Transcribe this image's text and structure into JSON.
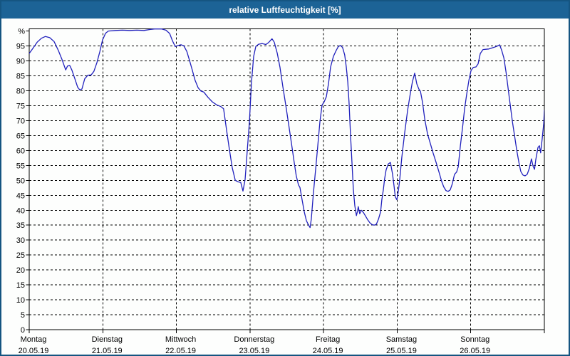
{
  "title": "relative Luftfeuchtigkeit [%]",
  "colors": {
    "titlebar_bg": "#1c6396",
    "titlebar_text": "#ffffff",
    "window_border": "#155581",
    "plot_line": "#2121bd",
    "grid": "#000000",
    "background": "#fdfefd"
  },
  "chart_data": {
    "type": "line",
    "title": "relative Luftfeuchtigkeit [%]",
    "ylabel": "%",
    "y_top_label": "%",
    "ylim": [
      0,
      100.7
    ],
    "y_ticks": [
      0,
      5,
      10,
      15,
      20,
      25,
      30,
      35,
      40,
      45,
      50,
      55,
      60,
      65,
      70,
      75,
      80,
      85,
      90,
      95
    ],
    "grid": "dashed",
    "legend_position": "none",
    "x_range_hours": [
      0,
      168
    ],
    "x_days": [
      {
        "name": "Montag",
        "date": "20.05.19"
      },
      {
        "name": "Dienstag",
        "date": "21.05.19"
      },
      {
        "name": "Mittwoch",
        "date": "22.05.19"
      },
      {
        "name": "Donnerstag",
        "date": "23.05.19"
      },
      {
        "name": "Freitag",
        "date": "24.05.19"
      },
      {
        "name": "Samstag",
        "date": "25.05.19"
      },
      {
        "name": "Sonntag",
        "date": "26.05.19"
      }
    ],
    "series": [
      {
        "name": "relative Luftfeuchtigkeit",
        "unit": "%",
        "points": [
          [
            0,
            92.5
          ],
          [
            1.4,
            94.5
          ],
          [
            2.6,
            96.3
          ],
          [
            4,
            97.6
          ],
          [
            5.3,
            98.2
          ],
          [
            6.7,
            97.8
          ],
          [
            8.1,
            96.5
          ],
          [
            9.5,
            93.5
          ],
          [
            10.7,
            90.5
          ],
          [
            11.9,
            87
          ],
          [
            12.5,
            88.3
          ],
          [
            13.2,
            88.5
          ],
          [
            13.9,
            87
          ],
          [
            14.9,
            84
          ],
          [
            15.8,
            81.2
          ],
          [
            16.5,
            80.3
          ],
          [
            17.2,
            80.6
          ],
          [
            18.1,
            84
          ],
          [
            19.1,
            85.2
          ],
          [
            20.2,
            85.3
          ],
          [
            21.1,
            86.5
          ],
          [
            22.1,
            89.5
          ],
          [
            23,
            93
          ],
          [
            23.9,
            97
          ],
          [
            24.9,
            99.3
          ],
          [
            25.8,
            100
          ],
          [
            28.1,
            100.2
          ],
          [
            30.4,
            100.3
          ],
          [
            32.8,
            100.2
          ],
          [
            35.1,
            100.3
          ],
          [
            37.4,
            100.2
          ],
          [
            39.3,
            100.5
          ],
          [
            40.9,
            100.7
          ],
          [
            43.2,
            100.7
          ],
          [
            44.6,
            100.3
          ],
          [
            45.8,
            99.2
          ],
          [
            46.7,
            96.8
          ],
          [
            47.6,
            94.8
          ],
          [
            48.6,
            95.2
          ],
          [
            49.5,
            95.4
          ],
          [
            50.4,
            95.1
          ],
          [
            51.4,
            93.2
          ],
          [
            52.3,
            90.1
          ],
          [
            53.2,
            86.9
          ],
          [
            54.1,
            83.5
          ],
          [
            55.1,
            81
          ],
          [
            56,
            79.9
          ],
          [
            56.9,
            79.6
          ],
          [
            58.3,
            77.8
          ],
          [
            59.7,
            76.3
          ],
          [
            61.1,
            75.3
          ],
          [
            62.5,
            74.7
          ],
          [
            63.4,
            74
          ],
          [
            64.4,
            66.5
          ],
          [
            65.3,
            60.3
          ],
          [
            66.2,
            54.3
          ],
          [
            67.2,
            50
          ],
          [
            68.1,
            49.5
          ],
          [
            69,
            49.3
          ],
          [
            69.7,
            46.4
          ],
          [
            70.4,
            50.3
          ],
          [
            71.1,
            59.9
          ],
          [
            71.8,
            69.4
          ],
          [
            72.5,
            83
          ],
          [
            73.2,
            91.5
          ],
          [
            73.9,
            94.8
          ],
          [
            74.8,
            95.6
          ],
          [
            76,
            95.8
          ],
          [
            77.2,
            95.5
          ],
          [
            78.1,
            96.2
          ],
          [
            79.2,
            97.4
          ],
          [
            79.9,
            96.3
          ],
          [
            80.9,
            92.5
          ],
          [
            81.8,
            87.8
          ],
          [
            82.7,
            81.5
          ],
          [
            83.7,
            75
          ],
          [
            84.6,
            68.8
          ],
          [
            85.5,
            62.5
          ],
          [
            86.4,
            56.2
          ],
          [
            87.1,
            51.5
          ],
          [
            87.8,
            48.5
          ],
          [
            88.3,
            47.6
          ],
          [
            89,
            43.5
          ],
          [
            89.7,
            39.5
          ],
          [
            90.4,
            36.5
          ],
          [
            91.1,
            35
          ],
          [
            91.6,
            34.2
          ],
          [
            92,
            37
          ],
          [
            92.7,
            45.8
          ],
          [
            93.4,
            53.7
          ],
          [
            94.1,
            61.6
          ],
          [
            94.8,
            69.6
          ],
          [
            95.5,
            75.2
          ],
          [
            96.2,
            76.3
          ],
          [
            96.9,
            78
          ],
          [
            97.6,
            82.3
          ],
          [
            98.3,
            88
          ],
          [
            99.2,
            91.5
          ],
          [
            100.1,
            93.5
          ],
          [
            100.8,
            94.8
          ],
          [
            101.5,
            95.2
          ],
          [
            102.2,
            94.5
          ],
          [
            102.9,
            92
          ],
          [
            103.4,
            88
          ],
          [
            103.9,
            83
          ],
          [
            104.3,
            76
          ],
          [
            104.8,
            65
          ],
          [
            105.3,
            55
          ],
          [
            105.7,
            47
          ],
          [
            106.2,
            41.5
          ],
          [
            106.7,
            38.2
          ],
          [
            107.1,
            39.8
          ],
          [
            107.3,
            41.2
          ],
          [
            107.8,
            38.8
          ],
          [
            108.3,
            40
          ],
          [
            109,
            39.2
          ],
          [
            109.7,
            38
          ],
          [
            110.4,
            36.8
          ],
          [
            111.1,
            35.8
          ],
          [
            111.8,
            35.2
          ],
          [
            112.5,
            35
          ],
          [
            113.2,
            35.3
          ],
          [
            113.9,
            37
          ],
          [
            114.6,
            39.5
          ],
          [
            115,
            43.5
          ],
          [
            115.5,
            47
          ],
          [
            115.9,
            50.5
          ],
          [
            116.4,
            53.5
          ],
          [
            117.1,
            55.5
          ],
          [
            117.8,
            56
          ],
          [
            118.5,
            52
          ],
          [
            119,
            48
          ],
          [
            119.4,
            44.5
          ],
          [
            119.9,
            43.5
          ],
          [
            120.4,
            46.5
          ],
          [
            120.8,
            50
          ],
          [
            121.5,
            57.6
          ],
          [
            122.4,
            65.6
          ],
          [
            123.4,
            73.5
          ],
          [
            124.3,
            79.1
          ],
          [
            125,
            83.1
          ],
          [
            125.7,
            85.9
          ],
          [
            126.4,
            82.3
          ],
          [
            127.1,
            80.5
          ],
          [
            127.6,
            79.8
          ],
          [
            128.3,
            76
          ],
          [
            129,
            70.4
          ],
          [
            129.9,
            65.6
          ],
          [
            130.8,
            62.4
          ],
          [
            131.7,
            59.2
          ],
          [
            132.7,
            56
          ],
          [
            133.6,
            52.9
          ],
          [
            134.5,
            49.7
          ],
          [
            135.2,
            47.8
          ],
          [
            135.9,
            46.6
          ],
          [
            136.6,
            46.3
          ],
          [
            137.3,
            46.8
          ],
          [
            138,
            48.9
          ],
          [
            138.7,
            52
          ],
          [
            139.4,
            52.8
          ],
          [
            139.9,
            54.5
          ],
          [
            140.6,
            61.5
          ],
          [
            141.3,
            67.5
          ],
          [
            142,
            74
          ],
          [
            142.7,
            79
          ],
          [
            143.4,
            83.5
          ],
          [
            144.1,
            86.8
          ],
          [
            144.8,
            87.8
          ],
          [
            145.7,
            88
          ],
          [
            146.4,
            89
          ],
          [
            147.1,
            92.5
          ],
          [
            148,
            93.8
          ],
          [
            148.9,
            93.9
          ],
          [
            149.9,
            94
          ],
          [
            150.8,
            94.3
          ],
          [
            151.7,
            94.6
          ],
          [
            152.7,
            95
          ],
          [
            153.4,
            95.4
          ],
          [
            154.1,
            93.5
          ],
          [
            154.8,
            91
          ],
          [
            155.5,
            86.3
          ],
          [
            156.2,
            80.7
          ],
          [
            156.9,
            75.1
          ],
          [
            157.6,
            69.6
          ],
          [
            158.3,
            64.8
          ],
          [
            159,
            60
          ],
          [
            159.7,
            56
          ],
          [
            160.3,
            53
          ],
          [
            161,
            51.8
          ],
          [
            161.7,
            51.5
          ],
          [
            162.4,
            52
          ],
          [
            163.1,
            54
          ],
          [
            163.8,
            57.2
          ],
          [
            164.3,
            54.8
          ],
          [
            164.8,
            53.7
          ],
          [
            165.2,
            56.8
          ],
          [
            165.9,
            61
          ],
          [
            166.4,
            61.6
          ],
          [
            166.8,
            59.2
          ],
          [
            167.3,
            64
          ],
          [
            167.8,
            69
          ],
          [
            168,
            73.5
          ]
        ]
      }
    ]
  }
}
